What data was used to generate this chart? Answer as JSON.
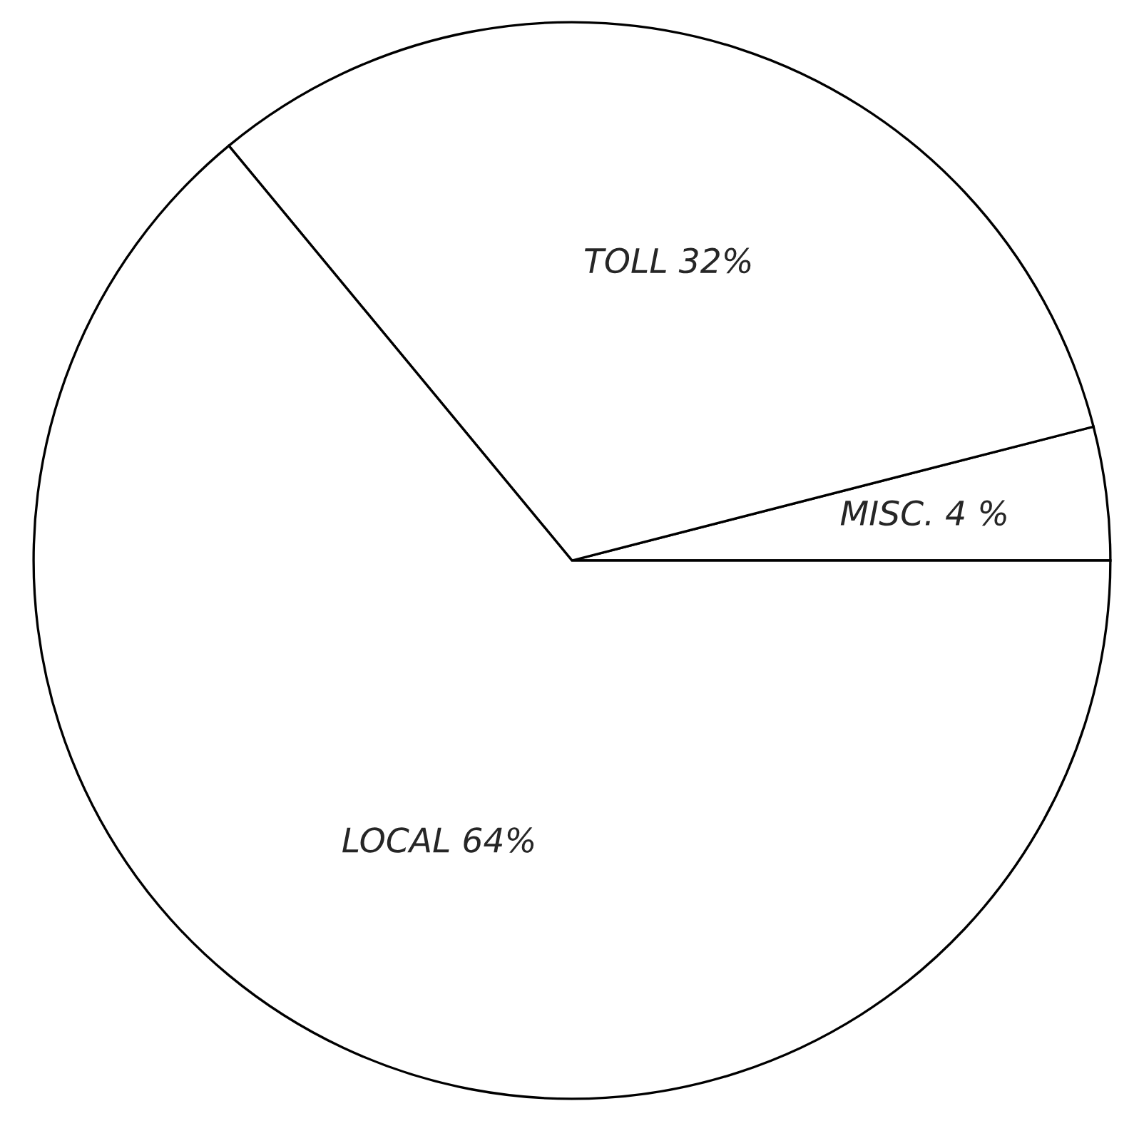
{
  "chart_data": {
    "type": "pie",
    "categories": [
      "MISC.",
      "TOLL",
      "LOCAL"
    ],
    "values": [
      4,
      32,
      64
    ],
    "value_labels": [
      "4 %",
      "32%",
      "64%"
    ],
    "colors": [
      "#ffffff",
      "#ffffff",
      "#ffffff"
    ]
  }
}
